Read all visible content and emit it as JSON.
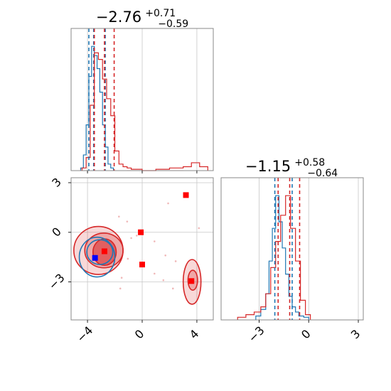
{
  "chart_data": {
    "type": "corner",
    "grid": true,
    "colors": {
      "series_a": "#1f77b4",
      "series_b": "#d62728",
      "frame": "#888888",
      "grid": "#c8c8c8"
    },
    "series_colors": [
      "#1f77b4",
      "#d62728"
    ],
    "panels": [
      {
        "id": "param1_marginal",
        "type": "histogram",
        "title": {
          "main": "−2.76",
          "sup": "+0.71",
          "sub": "−0.59"
        },
        "xlim": [
          -5.2,
          5.2
        ],
        "grid_x": [
          -4,
          0,
          4
        ],
        "quantile_lines": [
          {
            "series": 0,
            "x": [
              -3.9,
              -3.55,
              -2.7
            ]
          },
          {
            "series": 1,
            "x": [
              -3.5,
              -2.76,
              -2.05
            ]
          }
        ],
        "series": [
          {
            "series": 0,
            "bin_edges": [
              -4.5,
              -4.3,
              -4.1,
              -3.9,
              -3.7,
              -3.5,
              -3.3,
              -3.1,
              -2.9,
              -2.7,
              -2.5,
              -2.3,
              -2.1
            ],
            "counts": [
              0.02,
              0.12,
              0.35,
              0.72,
              0.95,
              0.88,
              0.78,
              0.6,
              0.35,
              0.18,
              0.05,
              0.02
            ]
          },
          {
            "series": 1,
            "bin_edges": [
              -4.4,
              -4.1,
              -3.8,
              -3.5,
              -3.2,
              -2.9,
              -2.6,
              -2.3,
              -2.0,
              -1.7,
              -1.4,
              -1.1,
              -0.8,
              0.0,
              1.0,
              2.0,
              3.0,
              3.6,
              4.2,
              4.8
            ],
            "counts": [
              0.02,
              0.1,
              0.5,
              0.9,
              0.85,
              0.7,
              0.55,
              0.42,
              0.15,
              0.05,
              0.03,
              0.02,
              0.01,
              0.0,
              0.01,
              0.02,
              0.03,
              0.06,
              0.03
            ]
          }
        ]
      },
      {
        "id": "param2_marginal",
        "type": "histogram",
        "title": {
          "main": "−1.15",
          "sup": "+0.58",
          "sub": "−0.64"
        },
        "xlim": [
          -5.3,
          3.3
        ],
        "grid_x": [
          -3,
          0,
          3
        ],
        "xticks": [
          -3,
          0,
          3
        ],
        "xtick_labels": [
          "−3",
          "0",
          "3"
        ],
        "quantile_lines": [
          {
            "series": 0,
            "x": [
              -2.05,
              -1.0
            ]
          },
          {
            "series": 1,
            "x": [
              -1.85,
              -1.15,
              -0.55
            ]
          }
        ],
        "series": [
          {
            "series": 0,
            "bin_edges": [
              -3.2,
              -2.9,
              -2.6,
              -2.4,
              -2.2,
              -2.0,
              -1.8,
              -1.6,
              -1.4,
              -1.2,
              -1.0,
              -0.8,
              -0.6,
              -0.3,
              0.0
            ],
            "counts": [
              0.03,
              0.08,
              0.2,
              0.45,
              0.7,
              0.95,
              0.75,
              0.55,
              0.35,
              0.18,
              0.1,
              0.06,
              0.03,
              0.02
            ]
          },
          {
            "series": 1,
            "bin_edges": [
              -4.3,
              -3.8,
              -3.3,
              -2.9,
              -2.6,
              -2.3,
              -2.0,
              -1.7,
              -1.4,
              -1.1,
              -0.8,
              -0.5,
              -0.2,
              0.1
            ],
            "counts": [
              0.02,
              0.04,
              0.06,
              0.1,
              0.2,
              0.4,
              0.6,
              0.8,
              0.95,
              0.7,
              0.45,
              0.15,
              0.04
            ]
          }
        ]
      },
      {
        "id": "joint",
        "type": "contour",
        "xlim": [
          -5.2,
          5.2
        ],
        "ylim": [
          -5.3,
          3.3
        ],
        "grid_x": [
          -4,
          0,
          4
        ],
        "grid_y": [
          3,
          0,
          -3
        ],
        "xticks": [
          -4,
          0,
          4
        ],
        "xtick_labels": [
          "−4",
          "0",
          "4"
        ],
        "yticks": [
          3,
          0,
          -3
        ],
        "ytick_labels": [
          "3",
          "0",
          "−3"
        ],
        "contours": [
          {
            "series": 1,
            "level": "outer",
            "center": [
              -3.2,
              -1.1
            ],
            "radius": [
              1.8,
              1.45
            ]
          },
          {
            "series": 1,
            "level": "inner",
            "center": [
              -2.8,
              -1.1
            ],
            "radius": [
              1.4,
              1.05
            ]
          },
          {
            "series": 1,
            "level": "core",
            "center": [
              -2.75,
              -1.2
            ],
            "radius": [
              0.85,
              0.8
            ]
          },
          {
            "series": 0,
            "level": "outer",
            "center": [
              -3.3,
              -1.5
            ],
            "radius": [
              1.3,
              1.2
            ]
          },
          {
            "series": 0,
            "level": "inner",
            "center": [
              -3.1,
              -1.2
            ],
            "radius": [
              0.95,
              0.75
            ]
          },
          {
            "series": 1,
            "level": "outer",
            "center": [
              3.65,
              -3.0
            ],
            "radius": [
              0.65,
              1.35
            ]
          },
          {
            "series": 1,
            "level": "inner",
            "center": [
              3.7,
              -2.9
            ],
            "radius": [
              0.35,
              0.6
            ]
          }
        ],
        "markers": [
          {
            "series": 1,
            "x": -2.76,
            "y": -1.15
          },
          {
            "series": 1,
            "x": -0.1,
            "y": 0.0
          },
          {
            "series": 1,
            "x": 0.0,
            "y": -1.95
          },
          {
            "series": 1,
            "x": 3.2,
            "y": 2.25
          },
          {
            "series": 1,
            "x": 3.6,
            "y": -2.95
          },
          {
            "series": 0,
            "x": -3.45,
            "y": -1.55
          }
        ],
        "scatter": [
          [
            1.9,
            1.75
          ],
          [
            -1.1,
            0.65
          ],
          [
            -0.8,
            -0.35
          ],
          [
            0.9,
            -0.55
          ],
          [
            1.7,
            -1.4
          ],
          [
            -1.5,
            -2.75
          ],
          [
            -1.6,
            -3.4
          ],
          [
            2.25,
            -3.4
          ],
          [
            2.45,
            -1.75
          ],
          [
            0.9,
            -2.5
          ],
          [
            -1.7,
            0.95
          ],
          [
            -0.4,
            -0.2
          ],
          [
            4.15,
            0.25
          ],
          [
            1.55,
            -2.9
          ],
          [
            -1.05,
            -1.6
          ]
        ]
      }
    ]
  }
}
